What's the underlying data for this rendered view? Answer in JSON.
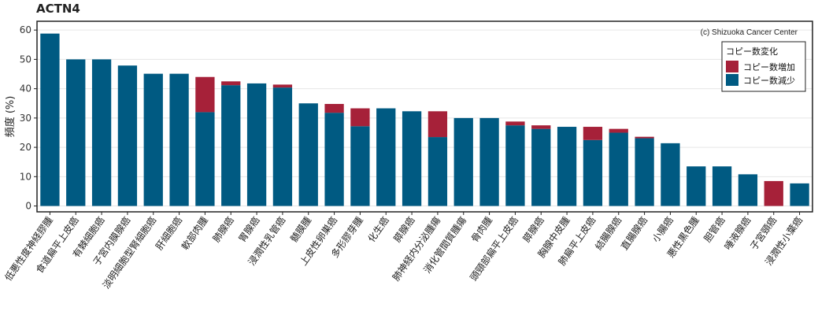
{
  "chart_data": {
    "type": "bar",
    "stacked": true,
    "title": "ACTN4",
    "ylabel": "頻度 (%)",
    "xlabel": "",
    "ylim": [
      -2,
      63
    ],
    "yticks": [
      0,
      10,
      20,
      30,
      40,
      50,
      60
    ],
    "grid": true,
    "credit": "(c) Shizuoka Cancer Center",
    "legend": {
      "title": "コピー数変化",
      "position": "top-right",
      "entries": [
        "コピー数増加",
        "コピー数減少"
      ]
    },
    "categories": [
      "低悪性度神経膠腫",
      "食道扁平上皮癌",
      "有棘細胞癌",
      "子宮内膜腺癌",
      "淡明細胞型腎細胞癌",
      "肝細胞癌",
      "軟部肉腫",
      "肺腺癌",
      "胃腺癌",
      "浸潤性乳管癌",
      "髄膜腫",
      "上皮性卵巣癌",
      "多形膠芽腫",
      "化生癌",
      "膵腺癌",
      "肺神経内分泌腫瘍",
      "消化管間質腫瘍",
      "骨肉腫",
      "頭頸部扁平上皮癌",
      "膵腺癌",
      "胸腺中皮腫",
      "肺扁平上皮癌",
      "結腸腺癌",
      "直腸腺癌",
      "小腸癌",
      "悪性黒色腫",
      "胆管癌",
      "唾液腺癌",
      "子宮頸癌",
      "浸潤性小葉癌"
    ],
    "series": [
      {
        "name": "コピー数減少",
        "color": "#005a82",
        "values": [
          58.8,
          50.0,
          50.0,
          47.9,
          45.1,
          45.1,
          32.0,
          41.2,
          41.8,
          40.4,
          35.0,
          31.8,
          27.2,
          33.3,
          32.3,
          23.5,
          30.0,
          30.0,
          27.5,
          26.3,
          27.0,
          22.5,
          25.0,
          23.1,
          21.4,
          13.5,
          13.5,
          10.8,
          0.0,
          7.7
        ]
      },
      {
        "name": "コピー数増加",
        "color": "#a62139",
        "values": [
          0,
          0,
          0,
          0,
          0,
          0,
          12.0,
          1.3,
          0,
          1.0,
          0,
          3.0,
          6.1,
          0,
          0,
          8.8,
          0,
          0,
          1.3,
          1.2,
          0,
          4.5,
          1.3,
          0.5,
          0,
          0,
          0,
          0,
          8.5,
          0
        ]
      }
    ]
  }
}
